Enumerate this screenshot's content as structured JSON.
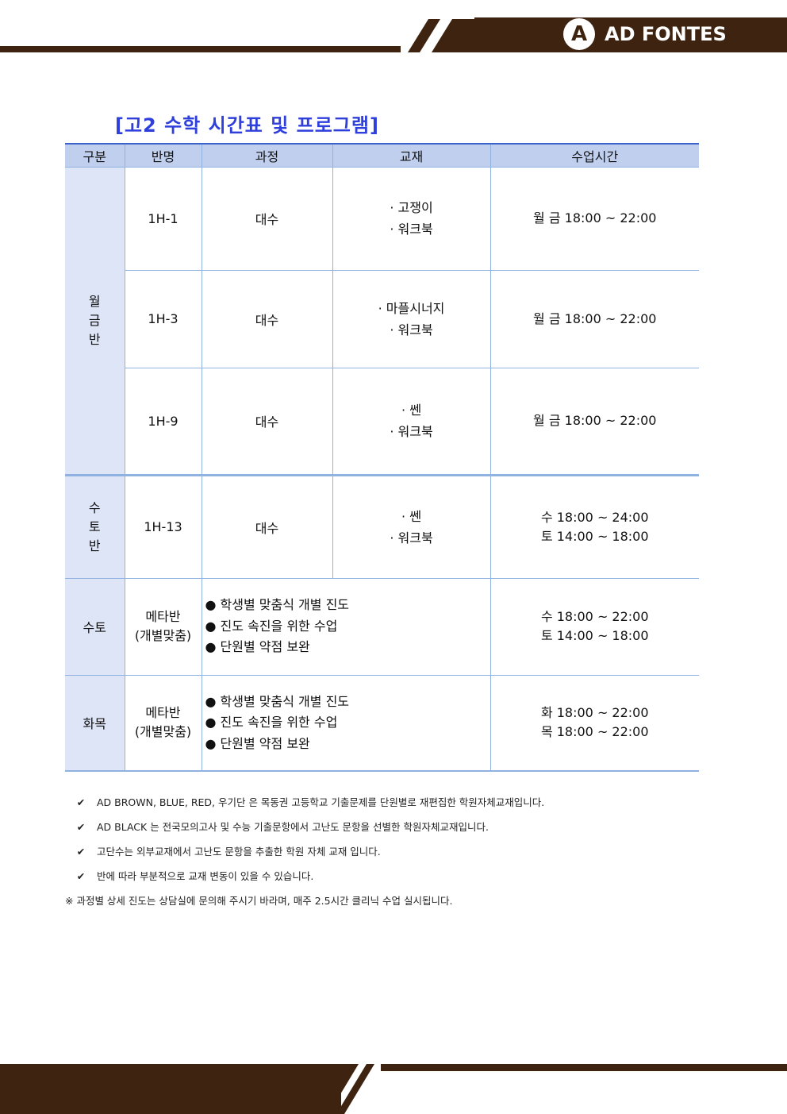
{
  "brand": {
    "name": "AD FONTES",
    "logo_glyph": "A",
    "color": "#3e2410"
  },
  "title": "[고2 수학 시간표 및 프로그램]",
  "table": {
    "headers": [
      "구분",
      "반명",
      "과정",
      "교재",
      "수업시간"
    ],
    "groups": {
      "mon_fri": "월금반",
      "wed_sat": "수토반",
      "wed_sat2": "수토",
      "tue_thu": "화목"
    },
    "rows": [
      {
        "class": "1H-1",
        "course": "대수",
        "books": [
          "· 고쟁이",
          "· 워크북"
        ],
        "times": [
          "월 금 18:00 ~ 22:00"
        ]
      },
      {
        "class": "1H-3",
        "course": "대수",
        "books": [
          "· 마플시너지",
          "· 워크북"
        ],
        "times": [
          "월 금 18:00 ~ 22:00"
        ]
      },
      {
        "class": "1H-9",
        "course": "대수",
        "books": [
          "· 쎈",
          "· 워크북"
        ],
        "times": [
          "월 금 18:00 ~ 22:00"
        ]
      },
      {
        "class": "1H-13",
        "course": "대수",
        "books": [
          "· 쎈",
          "· 워크북"
        ],
        "times": [
          "수 18:00 ~ 24:00",
          "토 14:00 ~ 18:00"
        ]
      },
      {
        "class": [
          "메타반",
          "(개별맞춤)"
        ],
        "program": [
          "● 학생별 맞춤식 개별 진도",
          "● 진도 속진을 위한 수업",
          "● 단원별 약점 보완"
        ],
        "times": [
          "수 18:00 ~ 22:00",
          "토 14:00 ~ 18:00"
        ]
      },
      {
        "class": [
          "메타반",
          "(개별맞춤)"
        ],
        "program": [
          "● 학생별 맞춤식 개별 진도",
          "● 진도 속진을 위한 수업",
          "● 단원별 약점 보완"
        ],
        "times": [
          "화 18:00 ~ 22:00",
          "목 18:00 ~ 22:00"
        ]
      }
    ]
  },
  "notes": {
    "check": "✔",
    "items": [
      "AD BROWN, BLUE, RED, 우기단 은 목동권 고등학교 기출문제를 단원별로 재편집한 학원자체교재입니다.",
      "AD BLACK 는 전국모의고사 및 수능 기출문항에서 고난도 문항을 선별한 학원자체교재입니다.",
      "고단수는 외부교재에서 고난도 문항을 추출한 학원 자체 교재 입니다.",
      "반에 따라 부분적으로 교재 변동이 있을 수 있습니다."
    ],
    "footnote": "※ 과정별 상세 진도는 상담실에 문의해 주시기 바라며, 매주 2.5시간 클리닉 수업 실시됩니다."
  }
}
